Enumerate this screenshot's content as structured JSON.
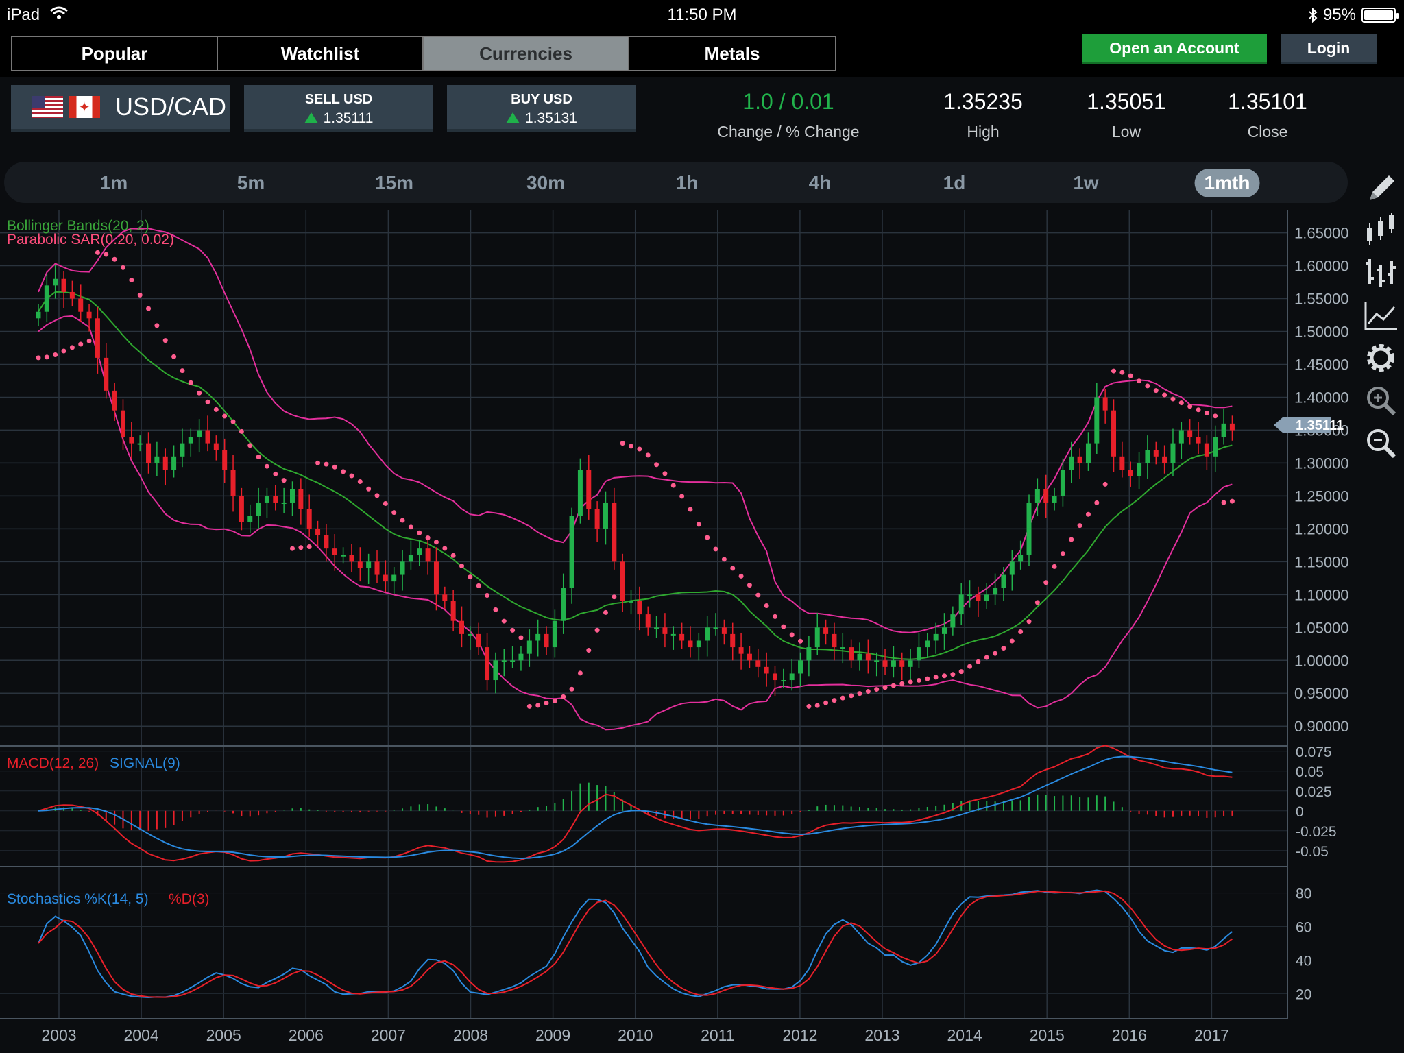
{
  "status": {
    "device": "iPad",
    "time": "11:50 PM",
    "battery": "95%"
  },
  "tabs": [
    {
      "label": "Popular",
      "active": false
    },
    {
      "label": "Watchlist",
      "active": false
    },
    {
      "label": "Currencies",
      "active": true
    },
    {
      "label": "Metals",
      "active": false
    }
  ],
  "header_buttons": {
    "open_account": "Open an Account",
    "login": "Login"
  },
  "quote": {
    "symbol": "USD/CAD",
    "sell_label": "SELL USD",
    "sell_price": "1.35111",
    "buy_label": "BUY USD",
    "buy_price": "1.35131",
    "change_value": "1.0 / 0.01",
    "change_label": "Change / % Change",
    "high_value": "1.35235",
    "high_label": "High",
    "low_value": "1.35051",
    "low_label": "Low",
    "close_value": "1.35101",
    "close_label": "Close"
  },
  "timeframes": [
    {
      "label": "1m",
      "active": false
    },
    {
      "label": "5m",
      "active": false
    },
    {
      "label": "15m",
      "active": false
    },
    {
      "label": "30m",
      "active": false
    },
    {
      "label": "1h",
      "active": false
    },
    {
      "label": "4h",
      "active": false
    },
    {
      "label": "1d",
      "active": false
    },
    {
      "label": "1w",
      "active": false
    },
    {
      "label": "1mth",
      "active": true
    }
  ],
  "indicators": {
    "bollinger": "Bollinger Bands(20, 2)",
    "sar": "Parabolic SAR(0.20, 0.02)",
    "macd": "MACD(12, 26)",
    "signal": "SIGNAL(9)",
    "stoch_k": "Stochastics %K(14, 5)",
    "stoch_d": "%D(3)"
  },
  "tools": [
    "pencil-icon",
    "candlestick-icon",
    "ohlc-bars-icon",
    "line-chart-icon",
    "settings-icon",
    "zoom-in-icon",
    "zoom-out-icon"
  ],
  "colors": {
    "up": "#22b24c",
    "down": "#e8202a",
    "bollinger": "#e32f9c",
    "ma": "#2fa82f",
    "sar": "#ff5d8f",
    "macd": "#e8202a",
    "signal": "#2a8ae0"
  },
  "chart_data": {
    "type": "candlestick",
    "x_labels": [
      "2003",
      "2004",
      "2005",
      "2006",
      "2007",
      "2008",
      "2009",
      "2010",
      "2011",
      "2012",
      "2013",
      "2014",
      "2015",
      "2016",
      "2017"
    ],
    "price_axis": [
      "1.65000",
      "1.60000",
      "1.55000",
      "1.50000",
      "1.45000",
      "1.40000",
      "1.35000",
      "1.30000",
      "1.25000",
      "1.20000",
      "1.15000",
      "1.10000",
      "1.05000",
      "1.00000",
      "0.95000",
      "0.90000"
    ],
    "ylim": [
      0.87,
      1.685
    ],
    "current_price": "1.35111",
    "macd_axis": [
      "0.075",
      "0.05",
      "0.025",
      "0",
      "-0.025",
      "-0.05"
    ],
    "macd_ylim": [
      -0.07,
      0.08
    ],
    "stoch_axis": [
      "80",
      "60",
      "40",
      "20"
    ],
    "stoch_ylim": [
      5,
      95
    ],
    "close": [
      1.53,
      1.57,
      1.58,
      1.56,
      1.55,
      1.53,
      1.52,
      1.46,
      1.41,
      1.38,
      1.34,
      1.33,
      1.33,
      1.3,
      1.31,
      1.29,
      1.31,
      1.33,
      1.34,
      1.35,
      1.33,
      1.32,
      1.29,
      1.25,
      1.21,
      1.22,
      1.24,
      1.25,
      1.24,
      1.24,
      1.26,
      1.23,
      1.2,
      1.19,
      1.17,
      1.16,
      1.16,
      1.15,
      1.14,
      1.15,
      1.13,
      1.12,
      1.13,
      1.15,
      1.16,
      1.17,
      1.15,
      1.1,
      1.09,
      1.06,
      1.04,
      1.04,
      1.02,
      0.97,
      1.0,
      1.0,
      1.0,
      1.01,
      1.03,
      1.04,
      1.02,
      1.06,
      1.11,
      1.22,
      1.29,
      1.23,
      1.2,
      1.24,
      1.15,
      1.09,
      1.09,
      1.07,
      1.05,
      1.05,
      1.04,
      1.04,
      1.03,
      1.02,
      1.03,
      1.05,
      1.05,
      1.04,
      1.02,
      1.01,
      1.0,
      0.99,
      0.98,
      0.97,
      0.97,
      0.98,
      1.0,
      1.02,
      1.05,
      1.04,
      1.02,
      1.02,
      1.0,
      1.01,
      1.0,
      1.0,
      0.99,
      1.0,
      0.99,
      1.0,
      1.02,
      1.03,
      1.04,
      1.05,
      1.07,
      1.1,
      1.1,
      1.09,
      1.1,
      1.11,
      1.13,
      1.15,
      1.16,
      1.24,
      1.26,
      1.24,
      1.25,
      1.29,
      1.31,
      1.3,
      1.33,
      1.4,
      1.38,
      1.31,
      1.29,
      1.28,
      1.3,
      1.32,
      1.31,
      1.3,
      1.33,
      1.35,
      1.34,
      1.33,
      1.31,
      1.34,
      1.36,
      1.35
    ]
  }
}
